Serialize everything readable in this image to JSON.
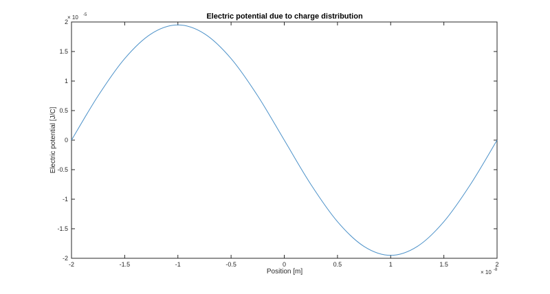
{
  "chart_data": {
    "type": "line",
    "title": "Electric potential due to charge distribution",
    "xlabel": "Position [m]",
    "ylabel": "Electric potential [J/C]",
    "x_multiplier": {
      "base": "× 10",
      "exponent": "-8"
    },
    "y_multiplier": {
      "base": "× 10",
      "exponent": "-5"
    },
    "xlim": [
      -2,
      2
    ],
    "ylim": [
      -2,
      2
    ],
    "x_ticks": [
      -2,
      -1.5,
      -1,
      -0.5,
      0,
      0.5,
      1,
      1.5,
      2
    ],
    "x_tick_labels": [
      "-2",
      "-1.5",
      "-1",
      "-0.5",
      "0",
      "0.5",
      "1",
      "1.5",
      "2"
    ],
    "y_ticks": [
      -2,
      -1.5,
      -1,
      -0.5,
      0,
      0.5,
      1,
      1.5,
      2
    ],
    "y_tick_labels": [
      "-2",
      "-1.5",
      "-1",
      "-0.5",
      "0",
      "0.5",
      "1",
      "1.5",
      "2"
    ],
    "grid": false,
    "line_color": "#4a90c8",
    "series": [
      {
        "x": [
          -2,
          -1.75,
          -1.5,
          -1.25,
          -1,
          -0.75,
          -0.5,
          -0.25,
          0,
          0.25,
          0.5,
          0.75,
          1,
          1.25,
          1.5,
          1.75,
          2
        ],
        "values": [
          0,
          0.75,
          1.38,
          1.8,
          1.95,
          1.8,
          1.38,
          0.75,
          0,
          -0.75,
          -1.38,
          -1.8,
          -1.95,
          -1.8,
          -1.38,
          -0.75,
          0
        ]
      }
    ]
  }
}
